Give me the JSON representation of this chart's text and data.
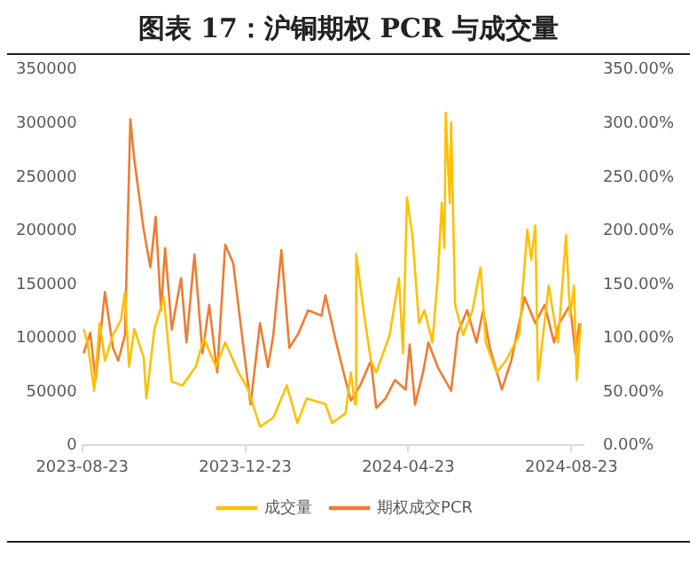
{
  "chart_data": {
    "type": "line",
    "title": "图表 17：沪铜期权 PCR 与成交量",
    "legend": "bottom",
    "grid": false,
    "marker": "none",
    "xlim": [
      "2023-08-23",
      "2024-09-01"
    ],
    "xticks": [
      "2023-08-23",
      "2023-12-23",
      "2024-04-23",
      "2024-08-23"
    ],
    "ylim": [
      0,
      350000
    ],
    "yticks": [
      0,
      50000,
      100000,
      150000,
      200000,
      250000,
      300000,
      350000
    ],
    "y2lim": [
      0,
      350
    ],
    "y2ticks": [
      {
        "value": 0,
        "label": "0.00%"
      },
      {
        "value": 50,
        "label": "50.00%"
      },
      {
        "value": 100,
        "label": "100.00%"
      },
      {
        "value": 150,
        "label": "150.00%"
      },
      {
        "value": 200,
        "label": "200.00%"
      },
      {
        "value": 250,
        "label": "250.00%"
      },
      {
        "value": 300,
        "label": "300.00%"
      },
      {
        "value": 350,
        "label": "350.00%"
      }
    ],
    "series": [
      {
        "name": "成交量",
        "color": "#ffc000",
        "x": [
          "2023-08-24",
          "2023-08-27",
          "2023-09-01",
          "2023-09-05",
          "2023-09-09",
          "2023-09-15",
          "2023-09-21",
          "2023-09-24",
          "2023-09-27",
          "2023-10-01",
          "2023-10-08",
          "2023-10-10",
          "2023-10-16",
          "2023-10-23",
          "2023-10-29",
          "2023-11-06",
          "2023-11-16",
          "2023-11-22",
          "2023-12-01",
          "2023-12-08",
          "2023-12-18",
          "2023-12-25",
          "2024-01-03",
          "2024-01-13",
          "2024-01-23",
          "2024-01-31",
          "2024-02-07",
          "2024-02-21",
          "2024-02-26",
          "2024-03-07",
          "2024-03-11",
          "2024-03-14",
          "2024-03-15",
          "2024-03-21",
          "2024-03-26",
          "2024-03-30",
          "2024-04-09",
          "2024-04-16",
          "2024-04-19",
          "2024-04-22",
          "2024-04-26",
          "2024-05-01",
          "2024-05-05",
          "2024-05-11",
          "2024-05-15",
          "2024-05-18",
          "2024-05-20",
          "2024-05-21",
          "2024-05-24",
          "2024-05-25",
          "2024-05-28",
          "2024-06-03",
          "2024-06-10",
          "2024-06-16",
          "2024-06-20",
          "2024-06-28",
          "2024-07-05",
          "2024-07-15",
          "2024-07-21",
          "2024-07-24",
          "2024-07-27",
          "2024-07-29",
          "2024-08-06",
          "2024-08-13",
          "2024-08-19",
          "2024-08-22",
          "2024-08-25",
          "2024-08-27",
          "2024-08-30"
        ],
        "values": [
          108500,
          96000,
          51000,
          114000,
          79000,
          103000,
          117000,
          143000,
          73500,
          108500,
          82000,
          44000,
          108500,
          138000,
          59500,
          56000,
          73500,
          100000,
          73500,
          96000,
          68000,
          52500,
          17500,
          26000,
          56000,
          21000,
          44000,
          38500,
          21000,
          30000,
          68000,
          38500,
          178500,
          121000,
          79000,
          68000,
          103000,
          156000,
          86000,
          231000,
          196000,
          114000,
          126000,
          96000,
          156000,
          226000,
          184000,
          310000,
          226000,
          301000,
          131000,
          103000,
          126000,
          166000,
          96000,
          68000,
          79000,
          103000,
          201000,
          173000,
          205000,
          61000,
          149000,
          96000,
          196000,
          121000,
          149000,
          61000,
          114000
        ]
      },
      {
        "name": "期权成交PCR",
        "color": "#ed7d31",
        "axis": "y2",
        "x": [
          "2023-08-24",
          "2023-08-29",
          "2023-09-02",
          "2023-09-09",
          "2023-09-15",
          "2023-09-19",
          "2023-09-24",
          "2023-09-28",
          "2023-10-01",
          "2023-10-08",
          "2023-10-13",
          "2023-10-17",
          "2023-10-21",
          "2023-10-24",
          "2023-10-29",
          "2023-11-05",
          "2023-11-09",
          "2023-11-15",
          "2023-11-21",
          "2023-11-26",
          "2023-12-02",
          "2023-12-08",
          "2023-12-14",
          "2023-12-20",
          "2023-12-27",
          "2024-01-03",
          "2024-01-09",
          "2024-01-13",
          "2024-01-19",
          "2024-01-25",
          "2024-02-01",
          "2024-02-08",
          "2024-02-18",
          "2024-02-21",
          "2024-02-29",
          "2024-03-07",
          "2024-03-11",
          "2024-03-18",
          "2024-03-26",
          "2024-03-30",
          "2024-04-06",
          "2024-04-13",
          "2024-04-21",
          "2024-04-24",
          "2024-04-28",
          "2024-05-04",
          "2024-05-08",
          "2024-05-15",
          "2024-05-25",
          "2024-05-30",
          "2024-06-06",
          "2024-06-13",
          "2024-06-18",
          "2024-06-23",
          "2024-07-02",
          "2024-07-09",
          "2024-07-19",
          "2024-07-27",
          "2024-08-03",
          "2024-08-10",
          "2024-08-14",
          "2024-08-22",
          "2024-08-26",
          "2024-08-29"
        ],
        "values": [
          86,
          105,
          61,
          143,
          91,
          79,
          103,
          304,
          266,
          201,
          166,
          213,
          126,
          184,
          108,
          156,
          96,
          178,
          86,
          131,
          68,
          187,
          170,
          108,
          38,
          114,
          73,
          103,
          182,
          91,
          105,
          126,
          121,
          140,
          96,
          61,
          42,
          56,
          79,
          35,
          44,
          61,
          52,
          94,
          38,
          68,
          96,
          73,
          51,
          105,
          126,
          96,
          126,
          91,
          52,
          79,
          138,
          114,
          131,
          96,
          114,
          131,
          86,
          114
        ]
      }
    ]
  }
}
